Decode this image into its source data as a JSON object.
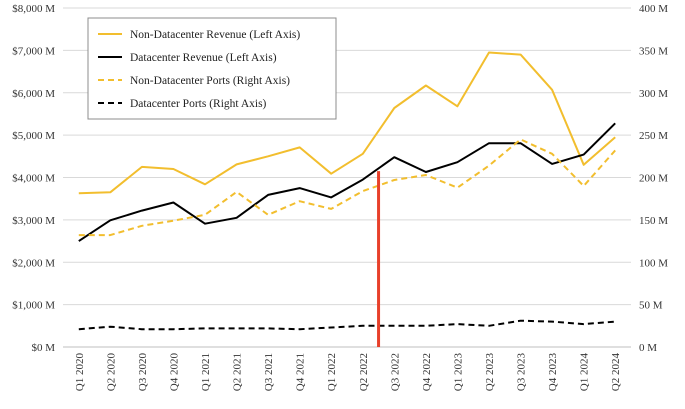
{
  "chart_data": {
    "type": "line",
    "title": "",
    "xlabel": "",
    "ylabel": "",
    "categories": [
      "Q1 2020",
      "Q2 2020",
      "Q3 2020",
      "Q4 2020",
      "Q1 2021",
      "Q2 2021",
      "Q3 2021",
      "Q4 2021",
      "Q1 2022",
      "Q2 2022",
      "Q3 2022",
      "Q4 2022",
      "Q1 2023",
      "Q2 2023",
      "Q3 2023",
      "Q4 2023",
      "Q1 2024",
      "Q2 2024"
    ],
    "left_axis": {
      "ylim": [
        0,
        8000
      ],
      "ticks": [
        0,
        1000,
        2000,
        3000,
        4000,
        5000,
        6000,
        7000,
        8000
      ],
      "tick_labels": [
        "$0 M",
        "$1,000 M",
        "$2,000 M",
        "$3,000 M",
        "$4,000 M",
        "$5,000 M",
        "$6,000 M",
        "$7,000 M",
        "$8,000 M"
      ]
    },
    "right_axis": {
      "ylim": [
        0,
        400
      ],
      "ticks": [
        0,
        50,
        100,
        150,
        200,
        250,
        300,
        350,
        400
      ],
      "tick_labels": [
        "0 M",
        "50 M",
        "100 M",
        "150 M",
        "200 M",
        "250 M",
        "300 M",
        "350 M",
        "400 M"
      ]
    },
    "series": [
      {
        "name": "Non-Datacenter Revenue (Left Axis)",
        "axis": "left",
        "color": "#F2BE2E",
        "dash": "solid",
        "values": [
          3630,
          3650,
          4250,
          4200,
          3840,
          4310,
          4500,
          4710,
          4090,
          4560,
          5640,
          6170,
          5680,
          6950,
          6900,
          6070,
          4300,
          4950
        ]
      },
      {
        "name": "Datacenter Revenue (Left Axis)",
        "axis": "left",
        "color": "#000000",
        "dash": "solid",
        "values": [
          2500,
          2990,
          3220,
          3410,
          2910,
          3050,
          3590,
          3750,
          3530,
          3950,
          4480,
          4130,
          4360,
          4810,
          4810,
          4320,
          4540,
          5280
        ]
      },
      {
        "name": "Non-Datacenter Ports (Right Axis)",
        "axis": "right",
        "color": "#F2BE2E",
        "dash": "dashed",
        "values": [
          132,
          132,
          143,
          149,
          156,
          183,
          156,
          172,
          163,
          184,
          197,
          203,
          188,
          214,
          245,
          228,
          190,
          232
        ]
      },
      {
        "name": "Datacenter Ports (Right Axis)",
        "axis": "right",
        "color": "#000000",
        "dash": "dashed",
        "values": [
          21,
          24,
          21,
          21,
          22,
          22,
          22,
          21,
          23,
          25,
          25,
          25,
          27,
          25,
          31,
          30,
          27,
          30
        ]
      }
    ],
    "marker_line": {
      "after_category": "Q2 2022",
      "color": "#E8402A"
    },
    "grid": "horizontal",
    "legend_position": "top-left"
  }
}
